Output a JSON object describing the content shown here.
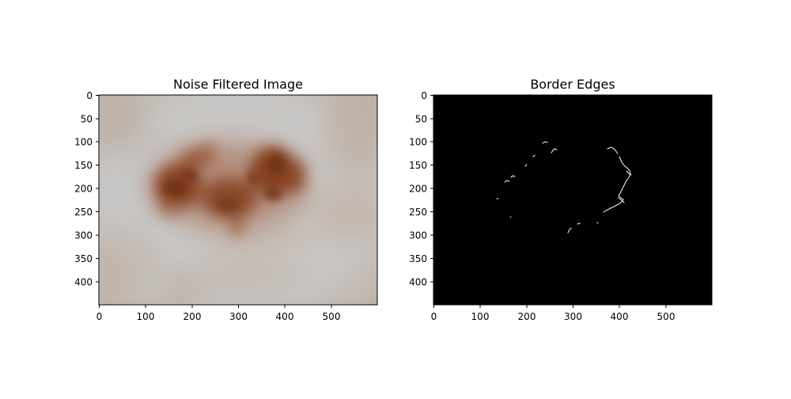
{
  "figure": {
    "panels": [
      {
        "title": "Noise Filtered Image",
        "kind": "dermoscopic-photo",
        "x_ticks": [
          "0",
          "100",
          "200",
          "300",
          "400",
          "500"
        ],
        "y_ticks": [
          "0",
          "50",
          "100",
          "150",
          "200",
          "250",
          "300",
          "350",
          "400"
        ]
      },
      {
        "title": "Border Edges",
        "kind": "edge-map",
        "x_ticks": [
          "0",
          "100",
          "200",
          "300",
          "400",
          "500"
        ],
        "y_ticks": [
          "0",
          "50",
          "100",
          "150",
          "200",
          "250",
          "300",
          "350",
          "400"
        ]
      }
    ]
  },
  "colors": {
    "skin_background": "#c9c9c9",
    "lesion": "#7a3d1f",
    "edge_bg": "#000000",
    "edge_line": "#ffffff"
  }
}
